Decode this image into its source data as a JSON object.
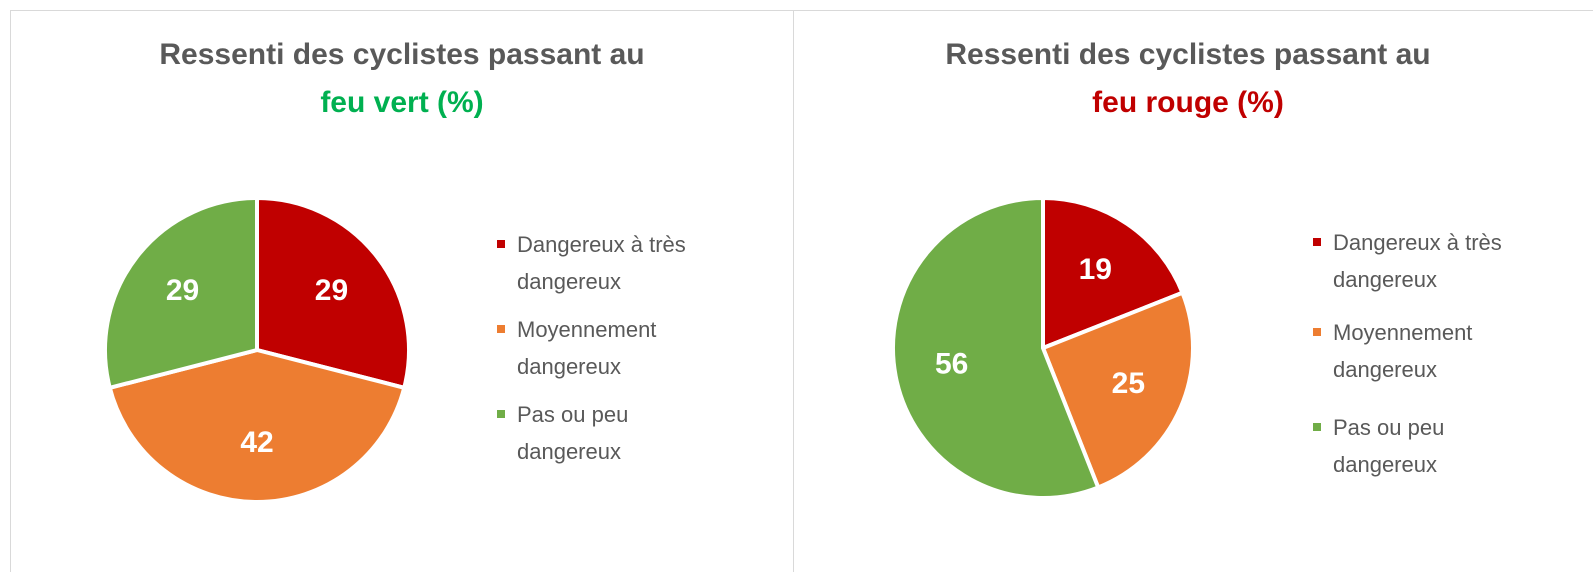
{
  "chart_data": [
    {
      "type": "pie",
      "title": "Ressenti des cyclistes passant au",
      "subtitle": "feu vert (%)",
      "subtitle_color": "#00b050",
      "categories": [
        "Dangereux à très dangereux",
        "Moyennement dangereux",
        "Pas ou peu dangereux"
      ],
      "values": [
        29,
        42,
        29
      ],
      "colors": [
        "#c00000",
        "#ed7d31",
        "#70ad47"
      ],
      "legend": "right"
    },
    {
      "type": "pie",
      "title": "Ressenti des cyclistes passant au",
      "subtitle": "feu rouge (%)",
      "subtitle_color": "#c00000",
      "categories": [
        "Dangereux à très dangereux",
        "Moyennement dangereux",
        "Pas ou peu dangereux"
      ],
      "values": [
        19,
        25,
        56
      ],
      "colors": [
        "#c00000",
        "#ed7d31",
        "#70ad47"
      ],
      "legend": "right"
    }
  ]
}
